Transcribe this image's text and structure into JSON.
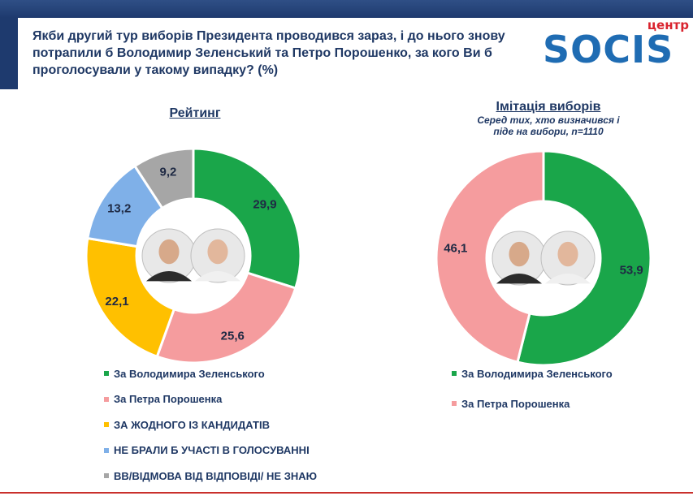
{
  "title": "Якби другий тур виборів Президента проводився зараз, і до нього знову потрапили б Володимир Зеленський та Петро Порошенко, за кого Ви б проголосували у такому випадку? (%)",
  "logo": {
    "small": "центр",
    "big": "SOCIS"
  },
  "chart_data": [
    {
      "type": "pie",
      "subtype": "donut",
      "title": "Рейтинг",
      "subtitle": "",
      "slices": [
        {
          "label": "За Володимира Зеленського",
          "value": 29.9,
          "display": "29,9",
          "color": "#1aa64a"
        },
        {
          "label": "За Петра Порошенка",
          "value": 25.6,
          "display": "25,6",
          "color": "#f59c9e"
        },
        {
          "label": "ЗА ЖОДНОГО ІЗ КАНДИДАТІВ",
          "value": 22.1,
          "display": "22,1",
          "color": "#ffc000"
        },
        {
          "label": "НЕ БРАЛИ Б УЧАСТІ В ГОЛОСУВАННІ",
          "value": 13.2,
          "display": "13,2",
          "color": "#7fb0e8"
        },
        {
          "label": "ВВ/ВІДМОВА ВІД ВІДПОВІДІ/ НЕ ЗНАЮ",
          "value": 9.2,
          "display": "9,2",
          "color": "#a6a6a6"
        }
      ],
      "legend_position": "bottom"
    },
    {
      "type": "pie",
      "subtype": "donut",
      "title": "Імітація виборів",
      "subtitle": "Серед тих, хто визначився і піде на вибори, n=1110",
      "slices": [
        {
          "label": "За Володимира Зеленського",
          "value": 53.9,
          "display": "53,9",
          "color": "#1aa64a"
        },
        {
          "label": "За Петра Порошенка",
          "value": 46.1,
          "display": "46,1",
          "color": "#f59c9e"
        }
      ],
      "legend_position": "bottom"
    }
  ]
}
